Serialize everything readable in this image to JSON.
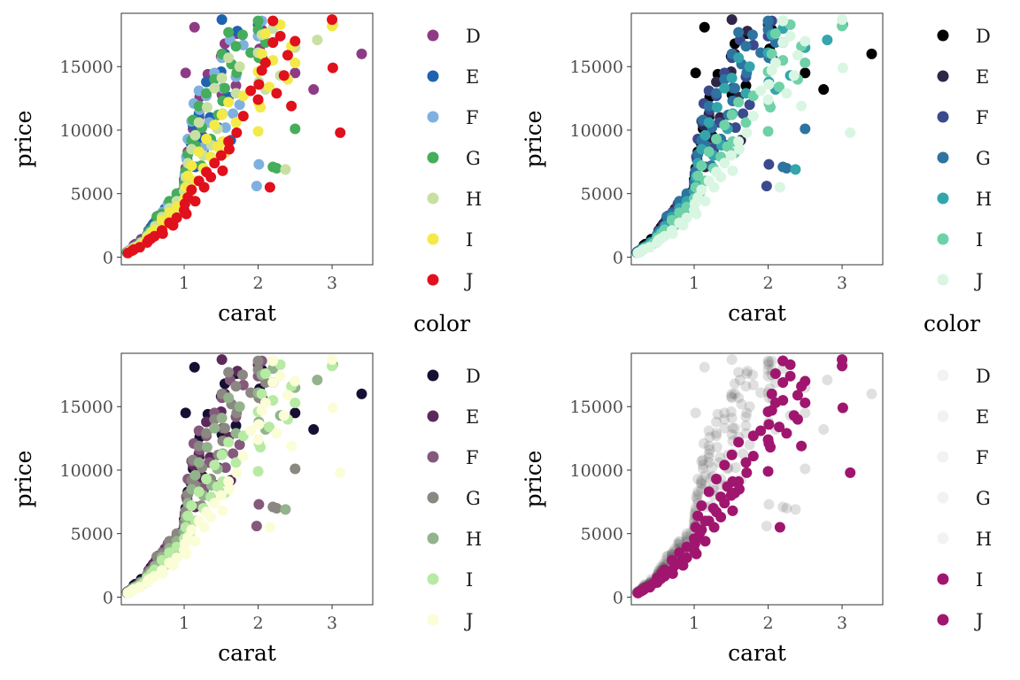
{
  "legend": {
    "title": "color",
    "levels": [
      "D",
      "E",
      "F",
      "G",
      "H",
      "I",
      "J"
    ]
  },
  "chart_data": [
    {
      "type": "scatter",
      "panel": "top-left",
      "xlabel": "carat",
      "ylabel": "price",
      "xlim": [
        0.15,
        3.55
      ],
      "ylim": [
        -600,
        19200
      ],
      "xticks": [
        1,
        2,
        3
      ],
      "yticks": [
        0,
        5000,
        10000,
        15000
      ],
      "legend_position": "right",
      "palette": {
        "D": "#8e3b84",
        "E": "#1f62b0",
        "F": "#7fb0e0",
        "G": "#45ad5b",
        "H": "#c8e0a2",
        "I": "#f3ea47",
        "J": "#e0101c"
      },
      "point_opacity": 1
    },
    {
      "type": "scatter",
      "panel": "top-right",
      "xlabel": "carat",
      "ylabel": "price",
      "xlim": [
        0.15,
        3.55
      ],
      "ylim": [
        -600,
        19200
      ],
      "xticks": [
        1,
        2,
        3
      ],
      "yticks": [
        0,
        5000,
        10000,
        15000
      ],
      "legend_position": "right",
      "palette": {
        "D": "#000000",
        "E": "#2f2648",
        "F": "#3b4a8c",
        "G": "#2d74a0",
        "H": "#33a6ac",
        "I": "#6fd1a8",
        "J": "#d9f6e3"
      },
      "point_opacity": 1
    },
    {
      "type": "scatter",
      "panel": "bottom-left",
      "xlabel": "carat",
      "ylabel": "price",
      "xlim": [
        0.15,
        3.55
      ],
      "ylim": [
        -600,
        19200
      ],
      "xticks": [
        1,
        2,
        3
      ],
      "yticks": [
        0,
        5000,
        10000,
        15000
      ],
      "legend_position": "right",
      "palette": {
        "D": "#170f33",
        "E": "#5c2a5a",
        "F": "#84597b",
        "G": "#8b8781",
        "H": "#93b38c",
        "I": "#b7eaa3",
        "J": "#fbfdd7"
      },
      "point_opacity": 1
    },
    {
      "type": "scatter",
      "panel": "bottom-right",
      "xlabel": "carat",
      "ylabel": "price",
      "xlim": [
        0.15,
        3.55
      ],
      "ylim": [
        -600,
        19200
      ],
      "xticks": [
        1,
        2,
        3
      ],
      "yticks": [
        0,
        5000,
        10000,
        15000
      ],
      "legend_position": "right",
      "palette": {
        "D": "#cccccc",
        "E": "#cccccc",
        "F": "#cccccc",
        "G": "#cccccc",
        "H": "#cccccc",
        "I": "#a0166f",
        "J": "#a0166f"
      },
      "highlighted": [
        "I",
        "J"
      ],
      "background_color": "#555555",
      "point_opacity": 1
    }
  ],
  "series": [
    {
      "level": "D",
      "points": [
        [
          0.23,
          410
        ],
        [
          0.26,
          520
        ],
        [
          0.3,
          680
        ],
        [
          0.31,
          760
        ],
        [
          0.35,
          890
        ],
        [
          0.41,
          1050
        ],
        [
          0.5,
          1520
        ],
        [
          0.52,
          1820
        ],
        [
          0.58,
          2350
        ],
        [
          0.62,
          2900
        ],
        [
          0.7,
          3300
        ],
        [
          0.71,
          2800
        ],
        [
          0.76,
          3700
        ],
        [
          0.8,
          4100
        ],
        [
          0.9,
          4500
        ],
        [
          0.96,
          5100
        ],
        [
          1.0,
          6100
        ],
        [
          1.01,
          5600
        ],
        [
          1.02,
          7000
        ],
        [
          1.05,
          8300
        ],
        [
          1.1,
          8900
        ],
        [
          1.12,
          10100
        ],
        [
          1.2,
          11000
        ],
        [
          1.21,
          12600
        ],
        [
          1.25,
          9500
        ],
        [
          1.32,
          14400
        ],
        [
          1.5,
          15800
        ],
        [
          1.51,
          12800
        ],
        [
          1.55,
          16800
        ],
        [
          1.7,
          13500
        ],
        [
          1.71,
          17600
        ],
        [
          2.01,
          18500
        ],
        [
          2.02,
          16400
        ],
        [
          2.05,
          17900
        ],
        [
          2.5,
          14500
        ],
        [
          2.75,
          13200
        ],
        [
          3.4,
          16000
        ],
        [
          1.14,
          18100
        ],
        [
          1.02,
          14500
        ],
        [
          0.34,
          1020
        ],
        [
          0.42,
          1410
        ],
        [
          0.55,
          2350
        ],
        [
          0.43,
          1280
        ],
        [
          0.32,
          930
        ],
        [
          0.65,
          3250
        ]
      ]
    },
    {
      "level": "E",
      "points": [
        [
          0.23,
          340
        ],
        [
          0.25,
          450
        ],
        [
          0.28,
          570
        ],
        [
          0.31,
          700
        ],
        [
          0.33,
          790
        ],
        [
          0.37,
          960
        ],
        [
          0.41,
          1150
        ],
        [
          0.5,
          1700
        ],
        [
          0.52,
          2100
        ],
        [
          0.58,
          2600
        ],
        [
          0.6,
          2250
        ],
        [
          0.7,
          3350
        ],
        [
          0.71,
          2950
        ],
        [
          0.74,
          3800
        ],
        [
          0.8,
          4300
        ],
        [
          0.9,
          4700
        ],
        [
          0.92,
          4000
        ],
        [
          1.0,
          5500
        ],
        [
          1.01,
          6450
        ],
        [
          1.04,
          7700
        ],
        [
          1.09,
          9000
        ],
        [
          1.12,
          10400
        ],
        [
          1.15,
          7100
        ],
        [
          1.2,
          11300
        ],
        [
          1.22,
          9400
        ],
        [
          1.3,
          13800
        ],
        [
          1.35,
          11000
        ],
        [
          1.51,
          18700
        ],
        [
          1.5,
          14600
        ],
        [
          1.55,
          16000
        ],
        [
          1.6,
          12600
        ],
        [
          1.72,
          17800
        ],
        [
          2.0,
          18300
        ],
        [
          2.06,
          15600
        ],
        [
          2.2,
          16900
        ],
        [
          0.36,
          820
        ],
        [
          0.56,
          2000
        ],
        [
          0.82,
          3200
        ],
        [
          1.26,
          8400
        ],
        [
          1.46,
          10200
        ],
        [
          1.63,
          9200
        ],
        [
          0.64,
          2700
        ],
        [
          0.48,
          1400
        ]
      ]
    },
    {
      "level": "F",
      "points": [
        [
          0.23,
          360
        ],
        [
          0.25,
          480
        ],
        [
          0.3,
          620
        ],
        [
          0.31,
          740
        ],
        [
          0.35,
          860
        ],
        [
          0.41,
          1100
        ],
        [
          0.5,
          1600
        ],
        [
          0.53,
          1950
        ],
        [
          0.6,
          2300
        ],
        [
          0.7,
          3100
        ],
        [
          0.71,
          3550
        ],
        [
          0.78,
          4200
        ],
        [
          0.9,
          4800
        ],
        [
          0.91,
          4300
        ],
        [
          1.0,
          5600
        ],
        [
          1.01,
          6600
        ],
        [
          1.03,
          7900
        ],
        [
          1.05,
          9300
        ],
        [
          1.1,
          10700
        ],
        [
          1.13,
          12100
        ],
        [
          1.2,
          13100
        ],
        [
          1.21,
          11600
        ],
        [
          1.3,
          12700
        ],
        [
          1.41,
          14500
        ],
        [
          1.51,
          15700
        ],
        [
          1.52,
          13300
        ],
        [
          1.62,
          17100
        ],
        [
          1.7,
          14200
        ],
        [
          1.8,
          16700
        ],
        [
          2.0,
          17400
        ],
        [
          2.05,
          18600
        ],
        [
          1.98,
          5600
        ],
        [
          2.01,
          7300
        ],
        [
          1.34,
          10600
        ],
        [
          1.26,
          8600
        ],
        [
          0.4,
          1000
        ],
        [
          0.57,
          2200
        ],
        [
          0.84,
          3700
        ],
        [
          1.06,
          6100
        ],
        [
          1.44,
          8800
        ],
        [
          1.56,
          10200
        ],
        [
          1.66,
          11300
        ],
        [
          1.75,
          12000
        ]
      ]
    },
    {
      "level": "G",
      "points": [
        [
          0.23,
          370
        ],
        [
          0.26,
          490
        ],
        [
          0.3,
          650
        ],
        [
          0.33,
          780
        ],
        [
          0.38,
          920
        ],
        [
          0.41,
          1180
        ],
        [
          0.5,
          1780
        ],
        [
          0.53,
          2050
        ],
        [
          0.6,
          2480
        ],
        [
          0.7,
          3400
        ],
        [
          0.72,
          3000
        ],
        [
          0.8,
          4400
        ],
        [
          0.9,
          5000
        ],
        [
          1.0,
          5900
        ],
        [
          1.02,
          6800
        ],
        [
          1.05,
          8100
        ],
        [
          1.1,
          9200
        ],
        [
          1.12,
          10800
        ],
        [
          1.15,
          8800
        ],
        [
          1.2,
          11900
        ],
        [
          1.24,
          10200
        ],
        [
          1.3,
          12900
        ],
        [
          1.41,
          14000
        ],
        [
          1.51,
          16000
        ],
        [
          1.52,
          12300
        ],
        [
          1.55,
          13300
        ],
        [
          1.6,
          17700
        ],
        [
          1.7,
          16600
        ],
        [
          1.71,
          14500
        ],
        [
          1.79,
          17500
        ],
        [
          2.0,
          17900
        ],
        [
          2.01,
          15700
        ],
        [
          2.1,
          16900
        ],
        [
          2.2,
          7100
        ],
        [
          2.25,
          7000
        ],
        [
          2.5,
          10100
        ],
        [
          2.0,
          18600
        ],
        [
          1.23,
          7200
        ],
        [
          1.36,
          9300
        ],
        [
          1.46,
          11200
        ],
        [
          0.36,
          860
        ],
        [
          0.56,
          2100
        ],
        [
          0.83,
          3900
        ],
        [
          0.63,
          3200
        ],
        [
          1.9,
          16100
        ],
        [
          1.64,
          15200
        ]
      ]
    },
    {
      "level": "H",
      "points": [
        [
          0.24,
          380
        ],
        [
          0.27,
          500
        ],
        [
          0.3,
          640
        ],
        [
          0.33,
          770
        ],
        [
          0.38,
          900
        ],
        [
          0.42,
          1130
        ],
        [
          0.5,
          1650
        ],
        [
          0.55,
          1950
        ],
        [
          0.61,
          2430
        ],
        [
          0.7,
          3150
        ],
        [
          0.73,
          2750
        ],
        [
          0.8,
          3850
        ],
        [
          0.9,
          4400
        ],
        [
          1.0,
          5200
        ],
        [
          1.02,
          6300
        ],
        [
          1.05,
          7400
        ],
        [
          1.1,
          8500
        ],
        [
          1.15,
          9600
        ],
        [
          1.2,
          10600
        ],
        [
          1.26,
          8000
        ],
        [
          1.31,
          11800
        ],
        [
          1.41,
          13300
        ],
        [
          1.51,
          14100
        ],
        [
          1.52,
          11300
        ],
        [
          1.6,
          15700
        ],
        [
          1.7,
          12900
        ],
        [
          1.75,
          15000
        ],
        [
          2.0,
          16100
        ],
        [
          2.01,
          13800
        ],
        [
          2.05,
          17500
        ],
        [
          2.2,
          18000
        ],
        [
          2.3,
          14300
        ],
        [
          2.5,
          16500
        ],
        [
          2.8,
          17100
        ],
        [
          3.01,
          18300
        ],
        [
          2.37,
          6900
        ],
        [
          2.1,
          13200
        ],
        [
          1.45,
          10100
        ],
        [
          0.37,
          840
        ],
        [
          0.57,
          2000
        ],
        [
          0.87,
          3600
        ],
        [
          1.08,
          5700
        ],
        [
          1.37,
          8800
        ]
      ]
    },
    {
      "level": "I",
      "points": [
        [
          0.24,
          330
        ],
        [
          0.27,
          440
        ],
        [
          0.3,
          580
        ],
        [
          0.34,
          720
        ],
        [
          0.4,
          870
        ],
        [
          0.45,
          1080
        ],
        [
          0.5,
          1520
        ],
        [
          0.56,
          1850
        ],
        [
          0.6,
          2150
        ],
        [
          0.7,
          2900
        ],
        [
          0.74,
          2500
        ],
        [
          0.8,
          3500
        ],
        [
          0.9,
          3950
        ],
        [
          1.0,
          4600
        ],
        [
          1.02,
          5500
        ],
        [
          1.05,
          6400
        ],
        [
          1.1,
          7200
        ],
        [
          1.15,
          6000
        ],
        [
          1.2,
          8300
        ],
        [
          1.26,
          7000
        ],
        [
          1.3,
          9300
        ],
        [
          1.41,
          10400
        ],
        [
          1.51,
          11200
        ],
        [
          1.52,
          9100
        ],
        [
          1.6,
          12200
        ],
        [
          1.7,
          10600
        ],
        [
          1.8,
          12700
        ],
        [
          2.0,
          14600
        ],
        [
          2.01,
          12100
        ],
        [
          2.05,
          16000
        ],
        [
          2.1,
          17600
        ],
        [
          2.2,
          15500
        ],
        [
          2.3,
          18300
        ],
        [
          2.4,
          14000
        ],
        [
          2.5,
          15300
        ],
        [
          2.2,
          18600
        ],
        [
          3.0,
          18200
        ],
        [
          2.0,
          9900
        ],
        [
          2.03,
          11800
        ],
        [
          1.55,
          8200
        ],
        [
          0.38,
          790
        ],
        [
          0.6,
          1750
        ],
        [
          0.86,
          3000
        ],
        [
          1.08,
          5100
        ],
        [
          1.36,
          7900
        ],
        [
          1.45,
          8700
        ],
        [
          2.15,
          13400
        ],
        [
          2.45,
          16600
        ]
      ]
    },
    {
      "level": "J",
      "points": [
        [
          0.24,
          320
        ],
        [
          0.3,
          520
        ],
        [
          0.32,
          600
        ],
        [
          0.4,
          780
        ],
        [
          0.5,
          1150
        ],
        [
          0.52,
          1350
        ],
        [
          0.6,
          1650
        ],
        [
          0.7,
          2100
        ],
        [
          0.71,
          1850
        ],
        [
          0.8,
          2700
        ],
        [
          0.9,
          3100
        ],
        [
          1.0,
          3700
        ],
        [
          1.01,
          4200
        ],
        [
          1.05,
          4700
        ],
        [
          1.1,
          5300
        ],
        [
          1.15,
          4400
        ],
        [
          1.2,
          6000
        ],
        [
          1.27,
          5500
        ],
        [
          1.3,
          6700
        ],
        [
          1.41,
          7400
        ],
        [
          1.5,
          8000
        ],
        [
          1.52,
          6800
        ],
        [
          1.6,
          9100
        ],
        [
          1.71,
          9800
        ],
        [
          1.8,
          11100
        ],
        [
          2.0,
          12400
        ],
        [
          2.01,
          13600
        ],
        [
          2.05,
          14700
        ],
        [
          2.1,
          15300
        ],
        [
          2.2,
          16900
        ],
        [
          2.3,
          17400
        ],
        [
          2.4,
          15900
        ],
        [
          2.5,
          17000
        ],
        [
          2.2,
          18600
        ],
        [
          3.0,
          18700
        ],
        [
          3.01,
          14900
        ],
        [
          3.11,
          9800
        ],
        [
          2.16,
          5500
        ],
        [
          2.45,
          11900
        ],
        [
          1.61,
          8500
        ],
        [
          1.36,
          6300
        ],
        [
          0.55,
          1450
        ],
        [
          0.85,
          2500
        ],
        [
          1.03,
          3400
        ],
        [
          1.9,
          13100
        ],
        [
          2.25,
          12900
        ],
        [
          2.35,
          14300
        ]
      ]
    }
  ]
}
